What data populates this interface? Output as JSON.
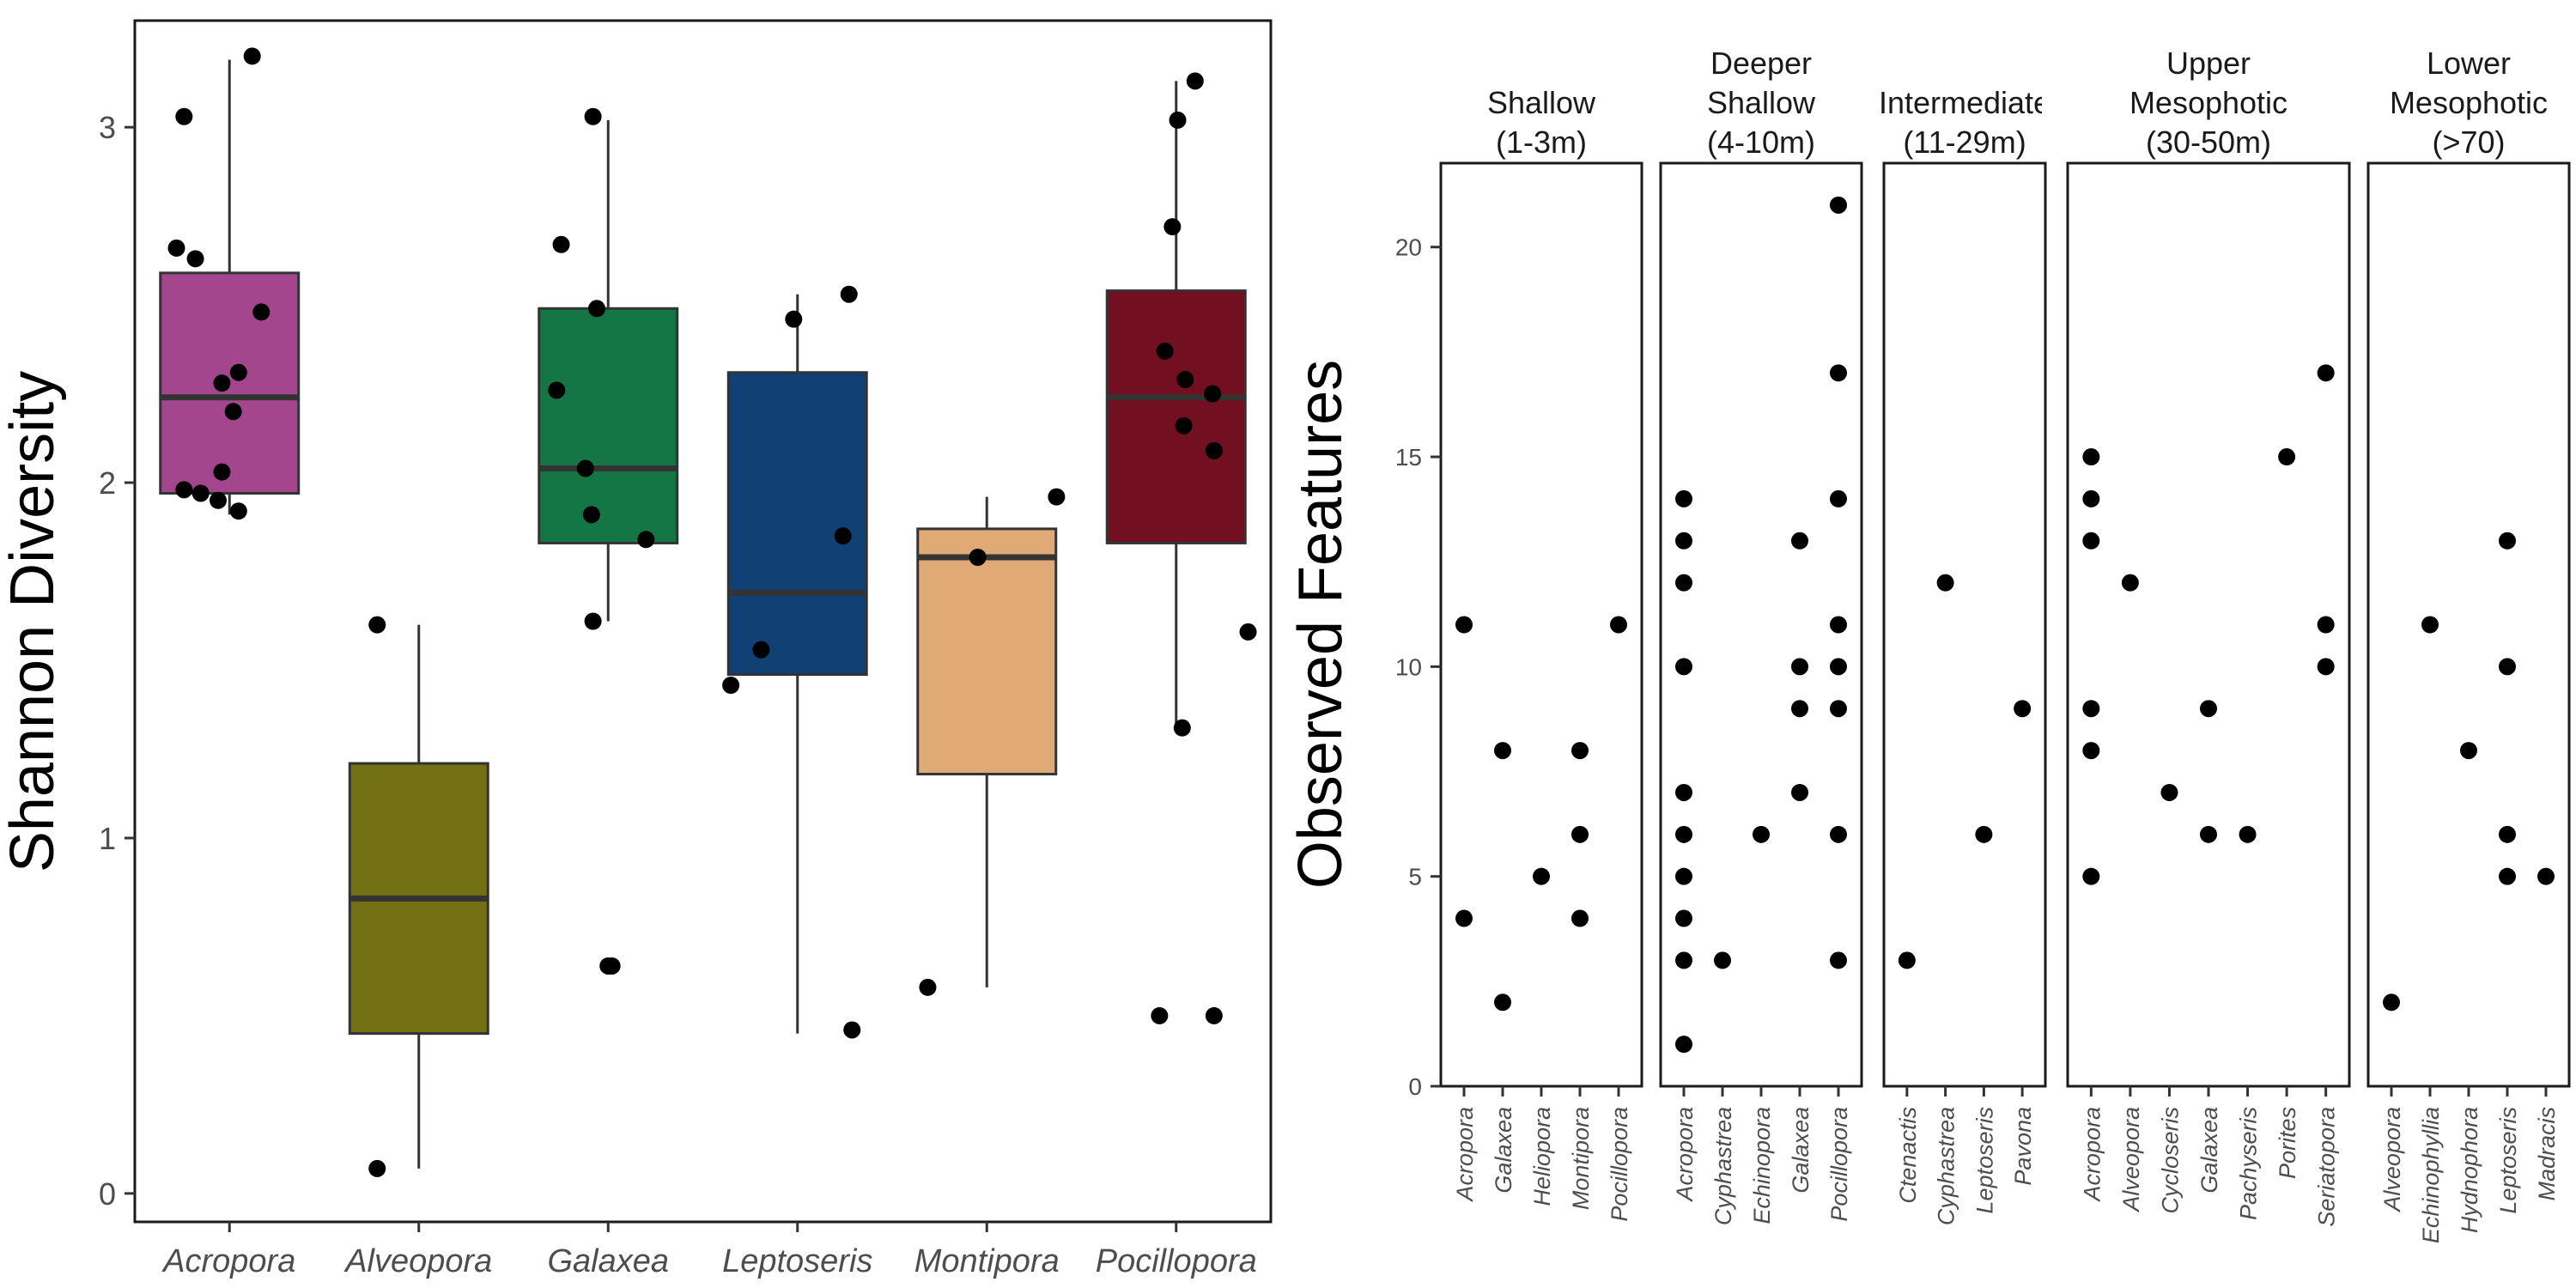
{
  "chart_data": [
    {
      "type": "box",
      "ylabel": "Shannon Diversity",
      "xlabel": "",
      "ylim": [
        -0.08,
        3.3
      ],
      "y_ticks": [
        0,
        1,
        2,
        3
      ],
      "grid": false,
      "legend": "none",
      "categories": [
        "Acropora",
        "Alveopora",
        "Galaxea",
        "Leptoseris",
        "Montipora",
        "Pocillopora"
      ],
      "boxes": [
        {
          "category": "Acropora",
          "color": "#A3468D",
          "whisker_low": 1.91,
          "q1": 1.97,
          "median": 2.24,
          "q3": 2.59,
          "whisker_high": 3.19,
          "points": [
            [
              -0.6,
              3.03
            ],
            [
              -0.7,
              2.66
            ],
            [
              -0.45,
              2.63
            ],
            [
              -0.6,
              1.98
            ],
            [
              -0.38,
              1.97
            ],
            [
              -0.15,
              1.95
            ],
            [
              0.12,
              1.92
            ],
            [
              -0.1,
              2.03
            ],
            [
              -0.1,
              2.28
            ],
            [
              0.12,
              2.31
            ],
            [
              0.05,
              2.2
            ],
            [
              0.42,
              2.48
            ],
            [
              0.3,
              3.2
            ]
          ]
        },
        {
          "category": "Alveopora",
          "color": "#737013",
          "whisker_low": 0.07,
          "q1": 0.45,
          "median": 0.83,
          "q3": 1.21,
          "whisker_high": 1.6,
          "points": [
            [
              -0.55,
              1.6
            ],
            [
              -0.55,
              0.07
            ]
          ]
        },
        {
          "category": "Galaxea",
          "color": "#137644",
          "whisker_low": 1.61,
          "q1": 1.83,
          "median": 2.04,
          "q3": 2.49,
          "whisker_high": 3.02,
          "points": [
            [
              -0.2,
              3.03
            ],
            [
              -0.62,
              2.67
            ],
            [
              -0.68,
              2.26
            ],
            [
              -0.15,
              2.49
            ],
            [
              -0.3,
              2.04
            ],
            [
              -0.22,
              1.91
            ],
            [
              -0.2,
              1.61
            ],
            [
              0.5,
              1.84
            ],
            [
              0.0,
              0.64
            ],
            [
              0.05,
              0.64
            ]
          ]
        },
        {
          "category": "Leptoseris",
          "color": "#114074",
          "whisker_low": 0.45,
          "q1": 1.46,
          "median": 1.69,
          "q3": 2.31,
          "whisker_high": 2.53,
          "points": [
            [
              -0.05,
              2.46
            ],
            [
              0.68,
              2.53
            ],
            [
              0.6,
              1.85
            ],
            [
              -0.48,
              1.53
            ],
            [
              -0.88,
              1.43
            ],
            [
              0.72,
              0.46
            ]
          ]
        },
        {
          "category": "Montipora",
          "color": "#DFAA76",
          "whisker_low": 0.58,
          "q1": 1.18,
          "median": 1.79,
          "q3": 1.87,
          "whisker_high": 1.96,
          "points": [
            [
              -0.12,
              1.79
            ],
            [
              0.92,
              1.96
            ],
            [
              -0.78,
              0.58
            ]
          ]
        },
        {
          "category": "Pocillopora",
          "color": "#720F21",
          "whisker_low": 1.31,
          "q1": 1.83,
          "median": 2.24,
          "q3": 2.54,
          "whisker_high": 3.13,
          "points": [
            [
              0.25,
              3.13
            ],
            [
              0.02,
              3.02
            ],
            [
              -0.05,
              2.72
            ],
            [
              -0.15,
              2.37
            ],
            [
              0.12,
              2.29
            ],
            [
              0.1,
              2.16
            ],
            [
              0.48,
              2.25
            ],
            [
              0.5,
              2.09
            ],
            [
              0.08,
              1.31
            ],
            [
              0.95,
              1.58
            ],
            [
              -0.22,
              0.5
            ],
            [
              0.5,
              0.5
            ]
          ]
        }
      ]
    },
    {
      "type": "scatter",
      "ylabel": "Observed Features",
      "ylim": [
        0,
        22
      ],
      "y_ticks": [
        0,
        5,
        10,
        15,
        20
      ],
      "grid": false,
      "legend": "none",
      "facets": [
        {
          "label_lines": [
            "Shallow",
            "(1-3m)"
          ],
          "categories": [
            "Acropora",
            "Galaxea",
            "Heliopora",
            "Montipora",
            "Pocillopora"
          ],
          "points": [
            [
              "Acropora",
              4
            ],
            [
              "Acropora",
              11
            ],
            [
              "Galaxea",
              2
            ],
            [
              "Galaxea",
              8
            ],
            [
              "Heliopora",
              5
            ],
            [
              "Montipora",
              4
            ],
            [
              "Montipora",
              6
            ],
            [
              "Montipora",
              8
            ],
            [
              "Pocillopora",
              11
            ]
          ]
        },
        {
          "label_lines": [
            "Deeper",
            "Shallow",
            "(4-10m)"
          ],
          "categories": [
            "Acropora",
            "Cyphastrea",
            "Echinopora",
            "Galaxea",
            "Pocillopora"
          ],
          "points": [
            [
              "Acropora",
              1
            ],
            [
              "Acropora",
              3
            ],
            [
              "Acropora",
              4
            ],
            [
              "Acropora",
              5
            ],
            [
              "Acropora",
              6
            ],
            [
              "Acropora",
              7
            ],
            [
              "Acropora",
              10
            ],
            [
              "Acropora",
              12
            ],
            [
              "Acropora",
              13
            ],
            [
              "Acropora",
              14
            ],
            [
              "Cyphastrea",
              3
            ],
            [
              "Echinopora",
              6
            ],
            [
              "Galaxea",
              7
            ],
            [
              "Galaxea",
              9
            ],
            [
              "Galaxea",
              10
            ],
            [
              "Galaxea",
              13
            ],
            [
              "Pocillopora",
              3
            ],
            [
              "Pocillopora",
              6
            ],
            [
              "Pocillopora",
              9
            ],
            [
              "Pocillopora",
              10
            ],
            [
              "Pocillopora",
              11
            ],
            [
              "Pocillopora",
              14
            ],
            [
              "Pocillopora",
              17
            ],
            [
              "Pocillopora",
              21
            ]
          ]
        },
        {
          "label_lines": [
            "Intermediate",
            "(11-29m)"
          ],
          "categories": [
            "Ctenactis",
            "Cyphastrea",
            "Leptoseris",
            "Pavona"
          ],
          "points": [
            [
              "Ctenactis",
              3
            ],
            [
              "Cyphastrea",
              12
            ],
            [
              "Leptoseris",
              6
            ],
            [
              "Pavona",
              9
            ]
          ]
        },
        {
          "label_lines": [
            "Upper",
            "Mesophotic",
            "(30-50m)"
          ],
          "categories": [
            "Acropora",
            "Alveopora",
            "Cycloseris",
            "Galaxea",
            "Pachyseris",
            "Porites",
            "Seriatopora"
          ],
          "points": [
            [
              "Acropora",
              5
            ],
            [
              "Acropora",
              8
            ],
            [
              "Acropora",
              9
            ],
            [
              "Acropora",
              13
            ],
            [
              "Acropora",
              14
            ],
            [
              "Acropora",
              15
            ],
            [
              "Alveopora",
              12
            ],
            [
              "Cycloseris",
              7
            ],
            [
              "Galaxea",
              6
            ],
            [
              "Galaxea",
              9
            ],
            [
              "Pachyseris",
              6
            ],
            [
              "Porites",
              15
            ],
            [
              "Seriatopora",
              10
            ],
            [
              "Seriatopora",
              11
            ],
            [
              "Seriatopora",
              17
            ]
          ]
        },
        {
          "label_lines": [
            "Lower",
            "Mesophotic",
            "(>70)"
          ],
          "categories": [
            "Alveopora",
            "Echinophyllia",
            "Hydnophora",
            "Leptoseris",
            "Madracis"
          ],
          "points": [
            [
              "Alveopora",
              2
            ],
            [
              "Echinophyllia",
              11
            ],
            [
              "Hydnophora",
              8
            ],
            [
              "Leptoseris",
              5
            ],
            [
              "Leptoseris",
              6
            ],
            [
              "Leptoseris",
              10
            ],
            [
              "Leptoseris",
              13
            ],
            [
              "Madracis",
              5
            ]
          ]
        }
      ]
    }
  ]
}
